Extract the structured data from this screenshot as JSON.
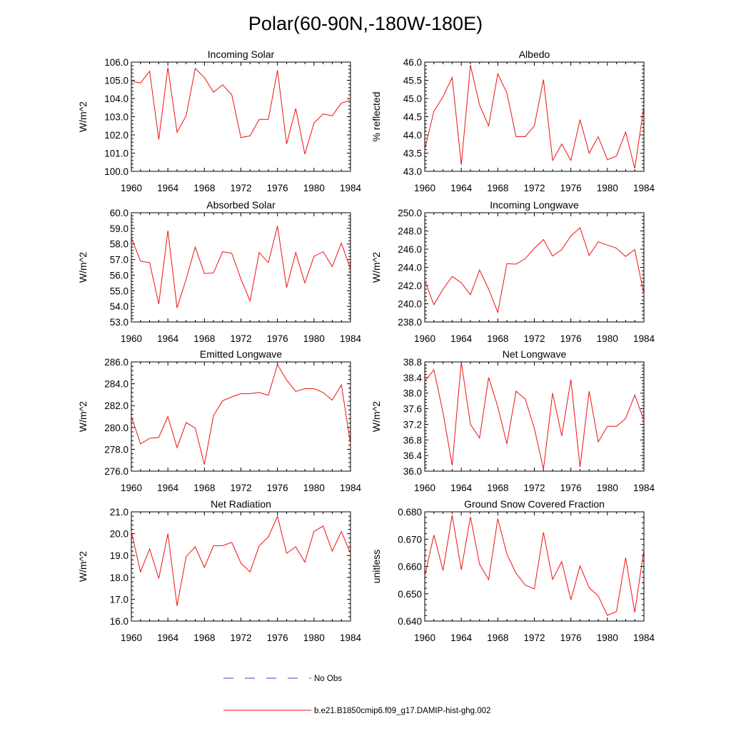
{
  "title": "Polar(60-90N,-180W-180E)",
  "legend": {
    "obs_label": "No Obs",
    "obs_color": "#3344cc",
    "model_label": "b.e21.B1850cmip6.f09_g17.DAMIP-hist-ghg.002",
    "model_color": "#ee1111"
  },
  "chart_data": [
    {
      "type": "line",
      "title": "Incoming Solar",
      "ylabel": "W/m^2",
      "xlim": [
        1960,
        1984
      ],
      "ylim": [
        100.0,
        106.0
      ],
      "x_ticks": [
        "1960",
        "1964",
        "1968",
        "1972",
        "1976",
        "1980",
        "1984"
      ],
      "y_ticks": [
        "100.0",
        "101.0",
        "102.0",
        "103.0",
        "104.0",
        "105.0",
        "106.0"
      ],
      "x": [
        1960,
        1961,
        1962,
        1963,
        1964,
        1965,
        1966,
        1967,
        1968,
        1969,
        1970,
        1971,
        1972,
        1973,
        1974,
        1975,
        1976,
        1977,
        1978,
        1979,
        1980,
        1981,
        1982,
        1983,
        1984
      ],
      "series": [
        {
          "values": [
            104.95,
            104.85,
            105.5,
            101.75,
            105.7,
            102.15,
            103.05,
            105.65,
            105.15,
            104.35,
            104.75,
            104.2,
            101.85,
            101.95,
            102.85,
            102.85,
            105.55,
            101.5,
            103.45,
            100.95,
            102.65,
            103.15,
            103.05,
            103.75,
            103.9
          ]
        }
      ]
    },
    {
      "type": "line",
      "title": "Albedo",
      "ylabel": "% reflected",
      "xlim": [
        1960,
        1984
      ],
      "ylim": [
        43.0,
        46.0
      ],
      "x_ticks": [
        "1960",
        "1964",
        "1968",
        "1972",
        "1976",
        "1980",
        "1984"
      ],
      "y_ticks": [
        "43.0",
        "43.5",
        "44.0",
        "44.5",
        "45.0",
        "45.5",
        "46.0"
      ],
      "x": [
        1960,
        1961,
        1962,
        1963,
        1964,
        1965,
        1966,
        1967,
        1968,
        1969,
        1970,
        1971,
        1972,
        1973,
        1974,
        1975,
        1976,
        1977,
        1978,
        1979,
        1980,
        1981,
        1982,
        1983,
        1984
      ],
      "series": [
        {
          "values": [
            43.6,
            44.65,
            45.05,
            45.58,
            43.18,
            45.92,
            44.82,
            44.25,
            45.68,
            45.15,
            43.95,
            43.95,
            44.25,
            45.52,
            43.3,
            43.75,
            43.3,
            44.42,
            43.5,
            43.95,
            43.32,
            43.42,
            44.08,
            43.08,
            44.78
          ]
        }
      ]
    },
    {
      "type": "line",
      "title": "Absorbed Solar",
      "ylabel": "W/m^2",
      "xlim": [
        1960,
        1984
      ],
      "ylim": [
        53.0,
        60.0
      ],
      "x_ticks": [
        "1960",
        "1964",
        "1968",
        "1972",
        "1976",
        "1980",
        "1984"
      ],
      "y_ticks": [
        "53.0",
        "54.0",
        "55.0",
        "56.0",
        "57.0",
        "58.0",
        "59.0",
        "60.0"
      ],
      "x": [
        1960,
        1961,
        1962,
        1963,
        1964,
        1965,
        1966,
        1967,
        1968,
        1969,
        1970,
        1971,
        1972,
        1973,
        1974,
        1975,
        1976,
        1977,
        1978,
        1979,
        1980,
        1981,
        1982,
        1983,
        1984
      ],
      "series": [
        {
          "values": [
            58.4,
            56.9,
            56.8,
            54.15,
            58.85,
            53.9,
            55.75,
            57.8,
            56.1,
            56.15,
            57.5,
            57.4,
            55.75,
            54.35,
            57.45,
            56.8,
            59.15,
            55.2,
            57.45,
            55.5,
            57.2,
            57.5,
            56.55,
            58.05,
            56.4
          ]
        }
      ]
    },
    {
      "type": "line",
      "title": "Incoming Longwave",
      "ylabel": "W/m^2",
      "xlim": [
        1960,
        1984
      ],
      "ylim": [
        238.0,
        250.0
      ],
      "x_ticks": [
        "1960",
        "1964",
        "1968",
        "1972",
        "1976",
        "1980",
        "1984"
      ],
      "y_ticks": [
        "238.0",
        "240.0",
        "242.0",
        "244.0",
        "246.0",
        "248.0",
        "250.0"
      ],
      "x": [
        1960,
        1961,
        1962,
        1963,
        1964,
        1965,
        1966,
        1967,
        1968,
        1969,
        1970,
        1971,
        1972,
        1973,
        1974,
        1975,
        1976,
        1977,
        1978,
        1979,
        1980,
        1981,
        1982,
        1983,
        1984
      ],
      "series": [
        {
          "values": [
            242.5,
            239.9,
            241.6,
            243.0,
            242.3,
            241.0,
            243.7,
            241.6,
            239.05,
            244.4,
            244.35,
            244.95,
            246.1,
            247.05,
            245.25,
            245.95,
            247.45,
            248.35,
            245.3,
            246.8,
            246.45,
            246.1,
            245.2,
            245.95,
            241.05
          ]
        }
      ]
    },
    {
      "type": "line",
      "title": "Emitted Longwave",
      "ylabel": "W/m^2",
      "xlim": [
        1960,
        1984
      ],
      "ylim": [
        276.0,
        286.0
      ],
      "x_ticks": [
        "1960",
        "1964",
        "1968",
        "1972",
        "1976",
        "1980",
        "1984"
      ],
      "y_ticks": [
        "276.0",
        "278.0",
        "280.0",
        "282.0",
        "284.0",
        "286.0"
      ],
      "x": [
        1960,
        1961,
        1962,
        1963,
        1964,
        1965,
        1966,
        1967,
        1968,
        1969,
        1970,
        1971,
        1972,
        1973,
        1974,
        1975,
        1976,
        1977,
        1978,
        1979,
        1980,
        1981,
        1982,
        1983,
        1984
      ],
      "series": [
        {
          "values": [
            281.0,
            278.5,
            279.0,
            279.1,
            281.0,
            278.15,
            280.45,
            279.95,
            276.6,
            281.1,
            282.45,
            282.8,
            283.1,
            283.1,
            283.2,
            282.95,
            285.75,
            284.35,
            283.3,
            283.55,
            283.55,
            283.2,
            282.5,
            283.9,
            278.5
          ]
        }
      ]
    },
    {
      "type": "line",
      "title": "Net Longwave",
      "ylabel": "W/m^2",
      "xlim": [
        1960,
        1984
      ],
      "ylim": [
        36.0,
        38.8
      ],
      "x_ticks": [
        "1960",
        "1964",
        "1968",
        "1972",
        "1976",
        "1980",
        "1984"
      ],
      "y_ticks": [
        "36.0",
        "36.4",
        "36.8",
        "37.2",
        "37.6",
        "38.0",
        "38.4",
        "38.8"
      ],
      "x": [
        1960,
        1961,
        1962,
        1963,
        1964,
        1965,
        1966,
        1967,
        1968,
        1969,
        1970,
        1971,
        1972,
        1973,
        1974,
        1975,
        1976,
        1977,
        1978,
        1979,
        1980,
        1981,
        1982,
        1983,
        1984
      ],
      "series": [
        {
          "values": [
            38.3,
            38.6,
            37.5,
            36.15,
            38.8,
            37.2,
            36.85,
            38.4,
            37.65,
            36.7,
            38.05,
            37.85,
            37.1,
            36.05,
            38.0,
            36.9,
            38.35,
            36.1,
            38.05,
            36.75,
            37.15,
            37.15,
            37.35,
            37.95,
            37.3
          ]
        }
      ]
    },
    {
      "type": "line",
      "title": "Net Radiation",
      "ylabel": "W/m^2",
      "xlim": [
        1960,
        1984
      ],
      "ylim": [
        16.0,
        21.0
      ],
      "x_ticks": [
        "1960",
        "1964",
        "1968",
        "1972",
        "1976",
        "1980",
        "1984"
      ],
      "y_ticks": [
        "16.0",
        "17.0",
        "18.0",
        "19.0",
        "20.0",
        "21.0"
      ],
      "x": [
        1960,
        1961,
        1962,
        1963,
        1964,
        1965,
        1966,
        1967,
        1968,
        1969,
        1970,
        1971,
        1972,
        1973,
        1974,
        1975,
        1976,
        1977,
        1978,
        1979,
        1980,
        1981,
        1982,
        1983,
        1984
      ],
      "series": [
        {
          "values": [
            20.1,
            18.25,
            19.3,
            17.95,
            20.0,
            16.7,
            18.95,
            19.4,
            18.45,
            19.45,
            19.45,
            19.6,
            18.65,
            18.25,
            19.45,
            19.85,
            20.8,
            19.1,
            19.4,
            18.7,
            20.1,
            20.35,
            19.2,
            20.1,
            19.1
          ]
        }
      ]
    },
    {
      "type": "line",
      "title": "Ground Snow Covered Fraction",
      "ylabel": "unitless",
      "xlim": [
        1960,
        1984
      ],
      "ylim": [
        0.64,
        0.68
      ],
      "x_ticks": [
        "1960",
        "1964",
        "1968",
        "1972",
        "1976",
        "1980",
        "1984"
      ],
      "y_ticks": [
        "0.640",
        "0.650",
        "0.660",
        "0.670",
        "0.680"
      ],
      "x": [
        1960,
        1961,
        1962,
        1963,
        1964,
        1965,
        1966,
        1967,
        1968,
        1969,
        1970,
        1971,
        1972,
        1973,
        1974,
        1975,
        1976,
        1977,
        1978,
        1979,
        1980,
        1981,
        1982,
        1983,
        1984
      ],
      "series": [
        {
          "values": [
            0.6565,
            0.6715,
            0.6585,
            0.6788,
            0.6588,
            0.6782,
            0.6608,
            0.6552,
            0.6775,
            0.6645,
            0.6575,
            0.6532,
            0.6518,
            0.6725,
            0.6552,
            0.6618,
            0.6478,
            0.6602,
            0.6522,
            0.6492,
            0.6421,
            0.6435,
            0.6632,
            0.6432,
            0.6662
          ]
        }
      ]
    }
  ]
}
